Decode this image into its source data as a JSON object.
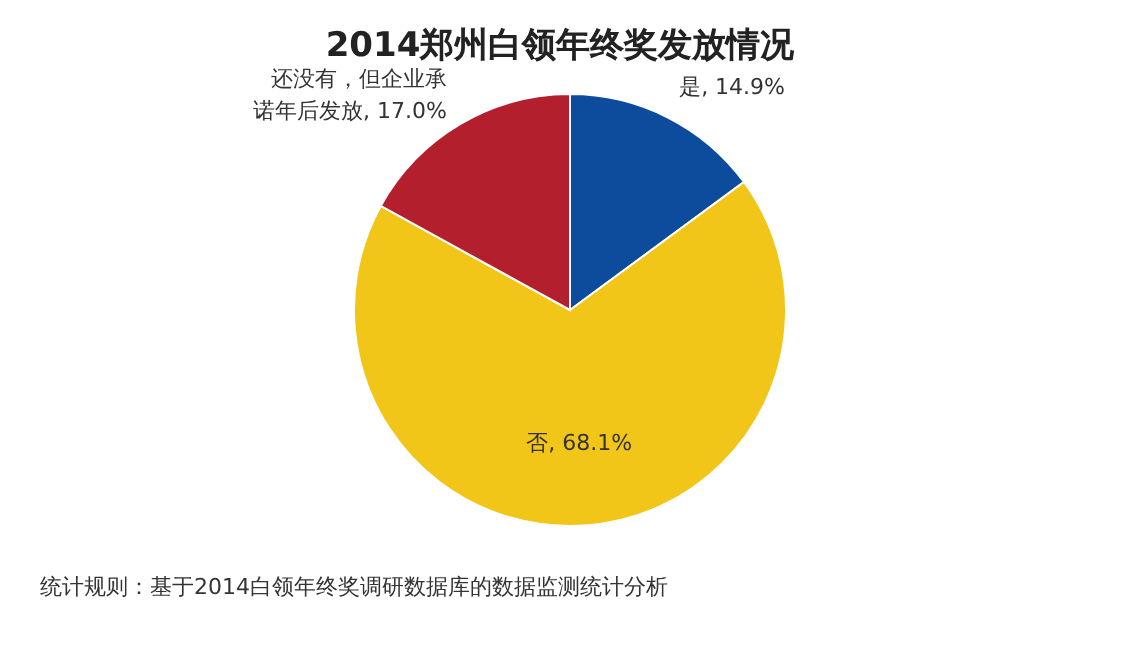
{
  "chart_data": {
    "type": "pie",
    "title": "2014郑州白领年终奖发放情况",
    "categories": [
      "是",
      "否",
      "还没有，但企业承诺年后发放"
    ],
    "values": [
      14.9,
      68.1,
      17.0
    ],
    "colors": [
      "#0d4c9c",
      "#f2c519",
      "#b41f2e"
    ],
    "value_labels": [
      "14.9%",
      "68.1%",
      "17.0%"
    ],
    "annotations": [
      "统计规则：基于2014白领年终奖调研数据库的数据监测统计分析"
    ]
  }
}
